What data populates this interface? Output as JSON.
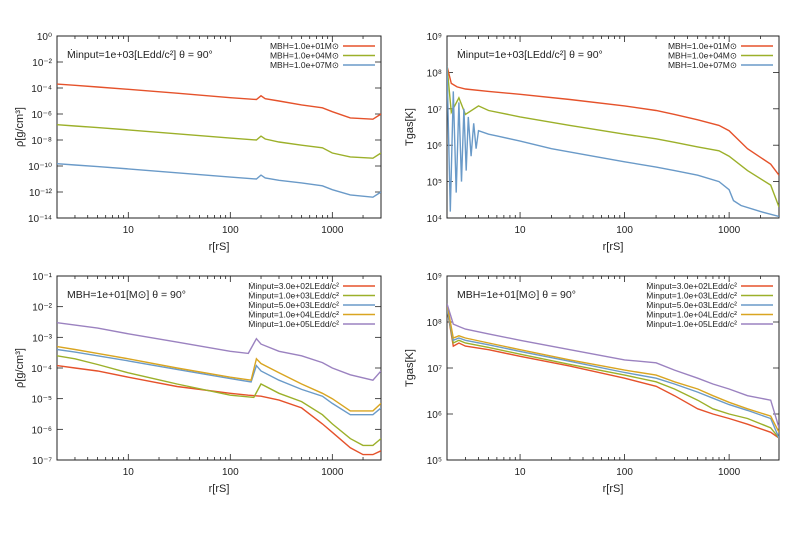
{
  "chart_data": [
    {
      "type": "line",
      "annotation": "Ṁinput=1e+03[LEdd/c²]  θ = 90°",
      "xlabel": "r[rS]",
      "ylabel": "ρ[g/cm³]",
      "xlog": true,
      "ylog": true,
      "xlim": [
        2,
        3000
      ],
      "ylim": [
        1e-14,
        1
      ],
      "xticks": [
        {
          "v": 10,
          "label": "10"
        },
        {
          "v": 100,
          "label": "100"
        },
        {
          "v": 1000,
          "label": "1000"
        }
      ],
      "yticks": [
        {
          "v": 1,
          "label": "10^0"
        },
        {
          "v": 0.01,
          "label": "10^-2"
        },
        {
          "v": 0.0001,
          "label": "10^-4"
        },
        {
          "v": 1e-06,
          "label": "10^-6"
        },
        {
          "v": 1e-08,
          "label": "10^-8"
        },
        {
          "v": 1e-10,
          "label": "10^-10"
        },
        {
          "v": 1e-12,
          "label": "10^-12"
        },
        {
          "v": 1e-14,
          "label": "10^-14"
        }
      ],
      "legend_position": "top-right",
      "series": [
        {
          "name": "MBH=1.0e+01M⊙",
          "color": "#e5522b",
          "x": [
            2,
            3,
            5,
            10,
            30,
            100,
            180,
            200,
            220,
            300,
            500,
            800,
            1000,
            1500,
            2500,
            3000
          ],
          "y": [
            0.0002,
            0.00016,
            0.00012,
            8e-05,
            4e-05,
            1.8e-05,
            1.3e-05,
            2.5e-05,
            1.5e-05,
            1e-05,
            5e-06,
            3e-06,
            1.5e-06,
            5e-07,
            4e-07,
            1e-06
          ]
        },
        {
          "name": "MBH=1.0e+04M⊙",
          "color": "#9cb02a",
          "x": [
            2,
            3,
            5,
            10,
            30,
            100,
            180,
            200,
            220,
            300,
            500,
            800,
            1000,
            1500,
            2500,
            3000
          ],
          "y": [
            1.5e-07,
            1.2e-07,
            9e-08,
            6e-08,
            3e-08,
            1.4e-08,
            1e-08,
            2e-08,
            1.2e-08,
            7e-09,
            4e-09,
            2.5e-09,
            1e-09,
            5e-10,
            4e-10,
            1e-09
          ]
        },
        {
          "name": "MBH=1.0e+07M⊙",
          "color": "#6a9ac8",
          "x": [
            2,
            3,
            5,
            10,
            30,
            100,
            180,
            200,
            220,
            300,
            500,
            800,
            1000,
            1500,
            2500,
            3000
          ],
          "y": [
            1.5e-10,
            1.2e-10,
            9e-11,
            6e-11,
            3e-11,
            1.4e-11,
            1e-11,
            2e-11,
            1.2e-11,
            8e-12,
            5e-12,
            3e-12,
            1.5e-12,
            6e-13,
            4e-13,
            1e-12
          ]
        }
      ]
    },
    {
      "type": "line",
      "annotation": "Ṁinput=1e+03[LEdd/c²]  θ = 90°",
      "xlabel": "r[rS]",
      "ylabel": "Tgas[K]",
      "xlog": true,
      "ylog": true,
      "xlim": [
        2,
        3000
      ],
      "ylim": [
        10000.0,
        1000000000.0
      ],
      "xticks": [
        {
          "v": 10,
          "label": "10"
        },
        {
          "v": 100,
          "label": "100"
        },
        {
          "v": 1000,
          "label": "1000"
        }
      ],
      "yticks": [
        {
          "v": 1000000000.0,
          "label": "10^9"
        },
        {
          "v": 100000000.0,
          "label": "10^8"
        },
        {
          "v": 10000000.0,
          "label": "10^7"
        },
        {
          "v": 1000000.0,
          "label": "10^6"
        },
        {
          "v": 100000.0,
          "label": "10^5"
        },
        {
          "v": 10000.0,
          "label": "10^4"
        }
      ],
      "legend_position": "top-right",
      "series": [
        {
          "name": "MBH=1.0e+01M⊙",
          "color": "#e5522b",
          "x": [
            2,
            2.2,
            2.5,
            3,
            5,
            10,
            30,
            100,
            200,
            300,
            500,
            800,
            1000,
            1500,
            2500,
            3000
          ],
          "y": [
            150000000.0,
            50000000.0,
            40000000.0,
            35000000.0,
            30000000.0,
            25000000.0,
            18000000.0,
            12000000.0,
            9000000.0,
            7000000.0,
            5000000.0,
            3500000.0,
            2500000.0,
            800000.0,
            300000.0,
            150000.0
          ]
        },
        {
          "name": "MBH=1.0e+04M⊙",
          "color": "#9cb02a",
          "x": [
            2,
            2.2,
            2.6,
            3,
            4,
            5,
            10,
            30,
            100,
            200,
            300,
            500,
            800,
            1000,
            1500,
            2500,
            3000
          ],
          "y": [
            150000000.0,
            8000000.0,
            20000000.0,
            7000000.0,
            12000000.0,
            9000000.0,
            6000000.0,
            3500000.0,
            2000000.0,
            1500000.0,
            1200000.0,
            900000.0,
            700000.0,
            500000.0,
            200000.0,
            80000.0,
            20000.0
          ]
        },
        {
          "name": "MBH=1.0e+07M⊙",
          "color": "#6a9ac8",
          "x": [
            2,
            2.15,
            2.3,
            2.45,
            2.6,
            2.75,
            2.9,
            3.05,
            3.2,
            3.4,
            3.6,
            3.8,
            4,
            5,
            6,
            8,
            10,
            20,
            50,
            100,
            200,
            300,
            500,
            800,
            1000,
            1100,
            1300,
            2000,
            3000
          ],
          "y": [
            150000000.0,
            15000.0,
            30000000.0,
            50000.0,
            15000000.0,
            100000.0,
            10000000.0,
            200000.0,
            6000000.0,
            500000.0,
            4000000.0,
            800000.0,
            2500000.0,
            2000000.0,
            1800000.0,
            1500000.0,
            1300000.0,
            800000.0,
            500000.0,
            350000.0,
            250000.0,
            200000.0,
            150000.0,
            100000.0,
            60000.0,
            30000.0,
            22000.0,
            15000.0,
            11000.0
          ]
        }
      ]
    },
    {
      "type": "line",
      "annotation": "MBH=1e+01[M⊙]     θ = 90°",
      "xlabel": "r[rS]",
      "ylabel": "ρ[g/cm³]",
      "xlog": true,
      "ylog": true,
      "xlim": [
        2,
        3000
      ],
      "ylim": [
        1e-07,
        0.1
      ],
      "xticks": [
        {
          "v": 10,
          "label": "10"
        },
        {
          "v": 100,
          "label": "100"
        },
        {
          "v": 1000,
          "label": "1000"
        }
      ],
      "yticks": [
        {
          "v": 0.1,
          "label": "10^-1"
        },
        {
          "v": 0.01,
          "label": "10^-2"
        },
        {
          "v": 0.001,
          "label": "10^-3"
        },
        {
          "v": 0.0001,
          "label": "10^-4"
        },
        {
          "v": 1e-05,
          "label": "10^-5"
        },
        {
          "v": 1e-06,
          "label": "10^-6"
        },
        {
          "v": 1e-07,
          "label": "10^-7"
        }
      ],
      "legend_position": "top-right",
      "series": [
        {
          "name": "Ṁinput=3.0e+02LEdd/c²",
          "color": "#e5522b",
          "x": [
            2,
            3,
            5,
            10,
            30,
            100,
            150,
            200,
            300,
            500,
            800,
            1000,
            1500,
            2000,
            2500,
            3000
          ],
          "y": [
            0.00012,
            0.0001,
            8e-05,
            5e-05,
            2.5e-05,
            1.5e-05,
            1.3e-05,
            1.2e-05,
            9e-06,
            5e-06,
            1.5e-06,
            8e-07,
            2.5e-07,
            1.5e-07,
            1.5e-07,
            2e-07
          ]
        },
        {
          "name": "Ṁinput=1.0e+03LEdd/c²",
          "color": "#9cb02a",
          "x": [
            2,
            3,
            5,
            10,
            30,
            100,
            170,
            200,
            300,
            500,
            800,
            1000,
            1500,
            2000,
            2500,
            3000
          ],
          "y": [
            0.00025,
            0.0002,
            0.00013,
            7e-05,
            3e-05,
            1.3e-05,
            1.1e-05,
            3e-05,
            1.5e-05,
            8e-06,
            3e-06,
            1.5e-06,
            5e-07,
            3e-07,
            3e-07,
            5e-07
          ]
        },
        {
          "name": "Ṁinput=5.0e+03LEdd/c²",
          "color": "#6a9ac8",
          "x": [
            2,
            3,
            5,
            10,
            30,
            100,
            160,
            180,
            200,
            300,
            500,
            800,
            1000,
            1500,
            2500,
            3000
          ],
          "y": [
            0.0004,
            0.00033,
            0.00025,
            0.00017,
            9e-05,
            4.5e-05,
            3.5e-05,
            0.00012,
            8e-05,
            4e-05,
            2e-05,
            1.2e-05,
            7e-06,
            3e-06,
            3e-06,
            5e-06
          ]
        },
        {
          "name": "Ṁinput=1.0e+04LEdd/c²",
          "color": "#d9a521",
          "x": [
            2,
            3,
            5,
            10,
            30,
            100,
            160,
            180,
            200,
            300,
            500,
            800,
            1000,
            1500,
            2500,
            3000
          ],
          "y": [
            0.0005,
            0.0004,
            0.0003,
            0.0002,
            0.0001,
            5e-05,
            4e-05,
            0.0002,
            0.00014,
            7e-05,
            3e-05,
            1.5e-05,
            1e-05,
            4e-06,
            4e-06,
            7e-06
          ]
        },
        {
          "name": "Ṁinput=1.0e+05LEdd/c²",
          "color": "#9b82c0",
          "x": [
            2,
            3,
            5,
            10,
            30,
            100,
            150,
            180,
            200,
            300,
            500,
            800,
            1000,
            1500,
            2500,
            3000
          ],
          "y": [
            0.003,
            0.0025,
            0.002,
            0.0013,
            0.0007,
            0.00035,
            0.0003,
            0.0009,
            0.0006,
            0.00035,
            0.00025,
            0.00015,
            0.0001,
            6e-05,
            4e-05,
            8e-05
          ]
        }
      ]
    },
    {
      "type": "line",
      "annotation": "MBH=1e+01[M⊙]     θ = 90°",
      "xlabel": "r[rS]",
      "ylabel": "Tgas[K]",
      "xlog": true,
      "ylog": true,
      "xlim": [
        2,
        3000
      ],
      "ylim": [
        100000.0,
        1000000000.0
      ],
      "xticks": [
        {
          "v": 10,
          "label": "10"
        },
        {
          "v": 100,
          "label": "100"
        },
        {
          "v": 1000,
          "label": "1000"
        }
      ],
      "yticks": [
        {
          "v": 1000000000.0,
          "label": "10^9"
        },
        {
          "v": 100000000.0,
          "label": "10^8"
        },
        {
          "v": 10000000.0,
          "label": "10^7"
        },
        {
          "v": 1000000.0,
          "label": "10^6"
        },
        {
          "v": 100000.0,
          "label": "10^5"
        }
      ],
      "legend_position": "top-right",
      "series": [
        {
          "name": "Ṁinput=3.0e+02LEdd/c²",
          "color": "#e5522b",
          "x": [
            2,
            2.3,
            2.6,
            3,
            5,
            10,
            30,
            100,
            200,
            300,
            500,
            700,
            1000,
            1500,
            2500,
            3000
          ],
          "y": [
            200000000.0,
            30000000.0,
            35000000.0,
            30000000.0,
            25000000.0,
            18000000.0,
            11000000.0,
            6000000.0,
            4000000.0,
            2500000.0,
            1300000.0,
            1000000.0,
            800000.0,
            600000.0,
            400000.0,
            300000.0
          ]
        },
        {
          "name": "Ṁinput=1.0e+03LEdd/c²",
          "color": "#9cb02a",
          "x": [
            2,
            2.3,
            2.6,
            3,
            5,
            10,
            30,
            100,
            200,
            300,
            500,
            700,
            1000,
            1500,
            2500,
            3000
          ],
          "y": [
            200000000.0,
            35000000.0,
            40000000.0,
            35000000.0,
            28000000.0,
            20000000.0,
            12000000.0,
            7000000.0,
            5000000.0,
            3500000.0,
            2000000.0,
            1300000.0,
            1000000.0,
            800000.0,
            500000.0,
            300000.0
          ]
        },
        {
          "name": "Ṁinput=5.0e+03LEdd/c²",
          "color": "#6a9ac8",
          "x": [
            2,
            2.3,
            2.6,
            3,
            5,
            10,
            30,
            100,
            200,
            300,
            500,
            700,
            1000,
            1500,
            2500,
            3000
          ],
          "y": [
            200000000.0,
            40000000.0,
            45000000.0,
            40000000.0,
            32000000.0,
            23000000.0,
            14000000.0,
            8000000.0,
            6000000.0,
            4500000.0,
            3000000.0,
            2200000.0,
            1600000.0,
            1200000.0,
            800000.0,
            300000.0
          ]
        },
        {
          "name": "Ṁinput=1.0e+04LEdd/c²",
          "color": "#d9a521",
          "x": [
            2,
            2.3,
            2.6,
            3,
            5,
            10,
            30,
            100,
            200,
            300,
            500,
            700,
            1000,
            1500,
            2500,
            3000
          ],
          "y": [
            250000000.0,
            45000000.0,
            50000000.0,
            45000000.0,
            35000000.0,
            25000000.0,
            15000000.0,
            9000000.0,
            7000000.0,
            5000000.0,
            3500000.0,
            2500000.0,
            1800000.0,
            1300000.0,
            900000.0,
            400000.0
          ]
        },
        {
          "name": "Ṁinput=1.0e+05LEdd/c²",
          "color": "#9b82c0",
          "x": [
            2,
            2.3,
            2.6,
            3,
            5,
            10,
            30,
            100,
            200,
            300,
            500,
            700,
            1000,
            1500,
            2500,
            3000
          ],
          "y": [
            250000000.0,
            90000000.0,
            80000000.0,
            70000000.0,
            55000000.0,
            40000000.0,
            25000000.0,
            15000000.0,
            13000000.0,
            9000000.0,
            6000000.0,
            4500000.0,
            3500000.0,
            2500000.0,
            2000000.0,
            500000.0
          ]
        }
      ]
    }
  ]
}
